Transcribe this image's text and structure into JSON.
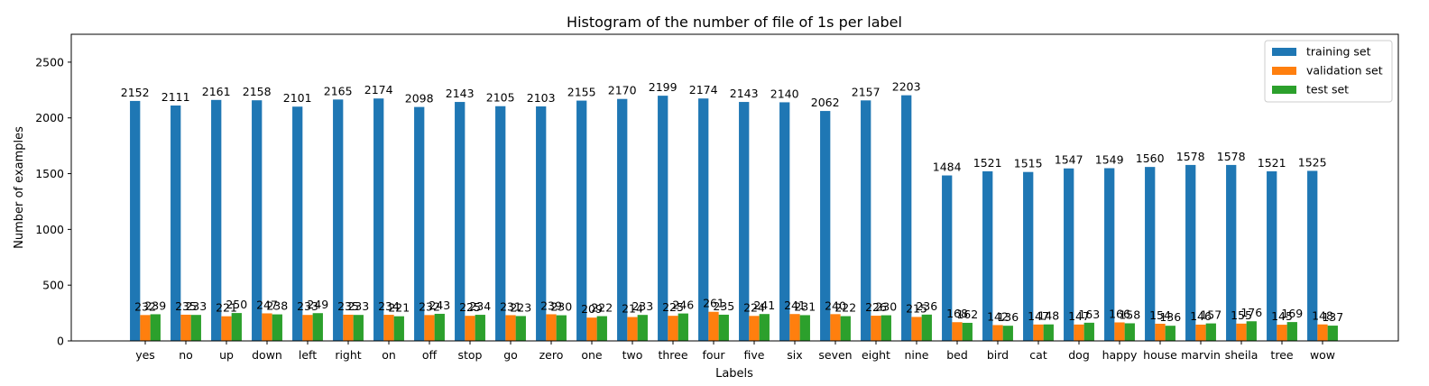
{
  "chart_data": {
    "type": "bar",
    "title": "Histogram of the number of file of 1s per label",
    "xlabel": "Labels",
    "ylabel": "Number of examples",
    "ylim": [
      0,
      2750
    ],
    "yticks": [
      0,
      500,
      1000,
      1500,
      2000,
      2500
    ],
    "grid": false,
    "legend_position": "top-right",
    "categories": [
      "yes",
      "no",
      "up",
      "down",
      "left",
      "right",
      "on",
      "off",
      "stop",
      "go",
      "zero",
      "one",
      "two",
      "three",
      "four",
      "five",
      "six",
      "seven",
      "eight",
      "nine",
      "bed",
      "bird",
      "cat",
      "dog",
      "happy",
      "house",
      "marvin",
      "sheila",
      "tree",
      "wow"
    ],
    "series": [
      {
        "name": "training set",
        "color": "#1f77b4",
        "values": [
          2152,
          2111,
          2161,
          2158,
          2101,
          2165,
          2174,
          2098,
          2143,
          2105,
          2103,
          2155,
          2170,
          2199,
          2174,
          2143,
          2140,
          2062,
          2157,
          2203,
          1484,
          1521,
          1515,
          1547,
          1549,
          1560,
          1578,
          1578,
          1521,
          1525
        ]
      },
      {
        "name": "validation set",
        "color": "#ff7f0e",
        "values": [
          232,
          235,
          221,
          247,
          233,
          235,
          234,
          232,
          225,
          231,
          239,
          209,
          214,
          225,
          261,
          224,
          241,
          240,
          226,
          215,
          168,
          142,
          147,
          147,
          166,
          154,
          146,
          155,
          145,
          148
        ]
      },
      {
        "name": "test set",
        "color": "#2ca02c",
        "values": [
          239,
          233,
          250,
          238,
          249,
          233,
          221,
          243,
          234,
          223,
          230,
          222,
          233,
          246,
          235,
          241,
          231,
          222,
          230,
          236,
          162,
          136,
          148,
          163,
          158,
          136,
          157,
          176,
          169,
          137
        ]
      }
    ]
  }
}
